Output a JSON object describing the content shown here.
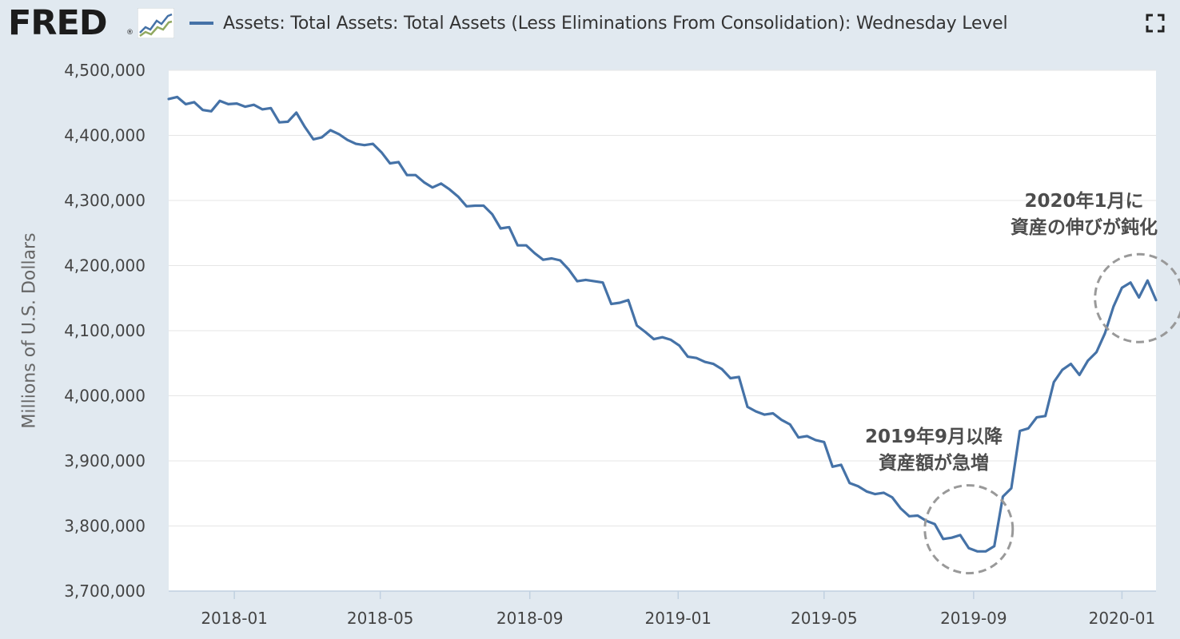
{
  "header": {
    "logo_text": "FRED",
    "logo_reg": "®",
    "logo_icon": "trend-chart-icon",
    "fullscreen_icon": "fullscreen-icon"
  },
  "colors": {
    "background": "#e1e9f0",
    "plot_background": "#ffffff",
    "series": "#4572a7",
    "annotation_circle": "#999999"
  },
  "chart_data": {
    "type": "line",
    "title": "",
    "xlabel": "",
    "ylabel": "Millions of U.S. Dollars",
    "ylim": [
      3700000,
      4500000
    ],
    "xlim": [
      "2017-11-08",
      "2020-01-22"
    ],
    "y_ticks": [
      "4,500,000",
      "4,400,000",
      "4,300,000",
      "4,200,000",
      "4,100,000",
      "4,000,000",
      "3,900,000",
      "3,800,000",
      "3,700,000"
    ],
    "x_ticks": [
      "2018-01",
      "2018-05",
      "2018-09",
      "2019-01",
      "2019-05",
      "2019-09",
      "2020-01"
    ],
    "grid": true,
    "legend_position": "top",
    "series": [
      {
        "name": "Assets: Total Assets: Total Assets (Less Eliminations From Consolidation): Wednesday Level",
        "points": [
          [
            "2017-11-08",
            4456000
          ],
          [
            "2017-11-15",
            4459000
          ],
          [
            "2017-11-22",
            4448000
          ],
          [
            "2017-11-29",
            4451000
          ],
          [
            "2017-12-06",
            4439000
          ],
          [
            "2017-12-13",
            4437000
          ],
          [
            "2017-12-20",
            4453000
          ],
          [
            "2017-12-27",
            4448000
          ],
          [
            "2018-01-03",
            4449000
          ],
          [
            "2018-01-10",
            4444000
          ],
          [
            "2018-01-17",
            4447000
          ],
          [
            "2018-01-24",
            4440000
          ],
          [
            "2018-01-31",
            4442000
          ],
          [
            "2018-02-07",
            4420000
          ],
          [
            "2018-02-14",
            4421000
          ],
          [
            "2018-02-21",
            4435000
          ],
          [
            "2018-02-28",
            4413000
          ],
          [
            "2018-03-07",
            4394000
          ],
          [
            "2018-03-14",
            4397000
          ],
          [
            "2018-03-21",
            4408000
          ],
          [
            "2018-03-28",
            4402000
          ],
          [
            "2018-04-04",
            4393000
          ],
          [
            "2018-04-11",
            4387000
          ],
          [
            "2018-04-18",
            4385000
          ],
          [
            "2018-04-25",
            4387000
          ],
          [
            "2018-05-02",
            4374000
          ],
          [
            "2018-05-09",
            4357000
          ],
          [
            "2018-05-16",
            4359000
          ],
          [
            "2018-05-23",
            4339000
          ],
          [
            "2018-05-30",
            4339000
          ],
          [
            "2018-06-06",
            4328000
          ],
          [
            "2018-06-13",
            4320000
          ],
          [
            "2018-06-20",
            4326000
          ],
          [
            "2018-06-27",
            4317000
          ],
          [
            "2018-07-04",
            4306000
          ],
          [
            "2018-07-11",
            4291000
          ],
          [
            "2018-07-18",
            4292000
          ],
          [
            "2018-07-25",
            4292000
          ],
          [
            "2018-08-01",
            4279000
          ],
          [
            "2018-08-08",
            4257000
          ],
          [
            "2018-08-15",
            4259000
          ],
          [
            "2018-08-22",
            4231000
          ],
          [
            "2018-08-29",
            4231000
          ],
          [
            "2018-09-05",
            4219000
          ],
          [
            "2018-09-12",
            4209000
          ],
          [
            "2018-09-19",
            4211000
          ],
          [
            "2018-09-26",
            4208000
          ],
          [
            "2018-10-03",
            4194000
          ],
          [
            "2018-10-10",
            4176000
          ],
          [
            "2018-10-17",
            4178000
          ],
          [
            "2018-10-24",
            4176000
          ],
          [
            "2018-10-31",
            4174000
          ],
          [
            "2018-11-07",
            4141000
          ],
          [
            "2018-11-14",
            4143000
          ],
          [
            "2018-11-21",
            4147000
          ],
          [
            "2018-11-28",
            4108000
          ],
          [
            "2018-12-05",
            4098000
          ],
          [
            "2018-12-12",
            4087000
          ],
          [
            "2018-12-19",
            4090000
          ],
          [
            "2018-12-26",
            4086000
          ],
          [
            "2019-01-02",
            4077000
          ],
          [
            "2019-01-09",
            4060000
          ],
          [
            "2019-01-16",
            4058000
          ],
          [
            "2019-01-23",
            4052000
          ],
          [
            "2019-01-30",
            4049000
          ],
          [
            "2019-02-06",
            4041000
          ],
          [
            "2019-02-13",
            4027000
          ],
          [
            "2019-02-20",
            4029000
          ],
          [
            "2019-02-27",
            3983000
          ],
          [
            "2019-03-06",
            3976000
          ],
          [
            "2019-03-13",
            3971000
          ],
          [
            "2019-03-20",
            3973000
          ],
          [
            "2019-03-27",
            3963000
          ],
          [
            "2019-04-03",
            3956000
          ],
          [
            "2019-04-10",
            3936000
          ],
          [
            "2019-04-17",
            3938000
          ],
          [
            "2019-04-24",
            3932000
          ],
          [
            "2019-05-01",
            3929000
          ],
          [
            "2019-05-08",
            3891000
          ],
          [
            "2019-05-15",
            3894000
          ],
          [
            "2019-05-22",
            3866000
          ],
          [
            "2019-05-29",
            3861000
          ],
          [
            "2019-06-05",
            3853000
          ],
          [
            "2019-06-12",
            3849000
          ],
          [
            "2019-06-19",
            3851000
          ],
          [
            "2019-06-26",
            3844000
          ],
          [
            "2019-07-03",
            3827000
          ],
          [
            "2019-07-10",
            3815000
          ],
          [
            "2019-07-17",
            3816000
          ],
          [
            "2019-07-24",
            3808000
          ],
          [
            "2019-07-31",
            3803000
          ],
          [
            "2019-08-07",
            3780000
          ],
          [
            "2019-08-14",
            3782000
          ],
          [
            "2019-08-21",
            3786000
          ],
          [
            "2019-08-28",
            3766000
          ],
          [
            "2019-09-04",
            3761000
          ],
          [
            "2019-09-11",
            3761000
          ],
          [
            "2019-09-18",
            3769000
          ],
          [
            "2019-09-25",
            3845000
          ],
          [
            "2019-10-02",
            3858000
          ],
          [
            "2019-10-09",
            3946000
          ],
          [
            "2019-10-16",
            3950000
          ],
          [
            "2019-10-23",
            3967000
          ],
          [
            "2019-10-30",
            3969000
          ],
          [
            "2019-11-06",
            4021000
          ],
          [
            "2019-11-13",
            4040000
          ],
          [
            "2019-11-20",
            4049000
          ],
          [
            "2019-11-27",
            4032000
          ],
          [
            "2019-12-04",
            4054000
          ],
          [
            "2019-12-11",
            4067000
          ],
          [
            "2019-12-18",
            4096000
          ],
          [
            "2019-12-25",
            4137000
          ],
          [
            "2020-01-01",
            4166000
          ],
          [
            "2020-01-08",
            4174000
          ],
          [
            "2020-01-15",
            4151000
          ],
          [
            "2020-01-22",
            4177000
          ],
          [
            "2020-01-29",
            4147000
          ]
        ]
      }
    ],
    "annotations": [
      {
        "lines": [
          "2020年1月に",
          "資産の伸びが鈍化"
        ],
        "circle_center": [
          "2020-01-15",
          4150000
        ]
      },
      {
        "lines": [
          "2019年9月以降",
          "資産額が急増"
        ],
        "circle_center": [
          "2019-08-28",
          3795000
        ]
      }
    ]
  }
}
